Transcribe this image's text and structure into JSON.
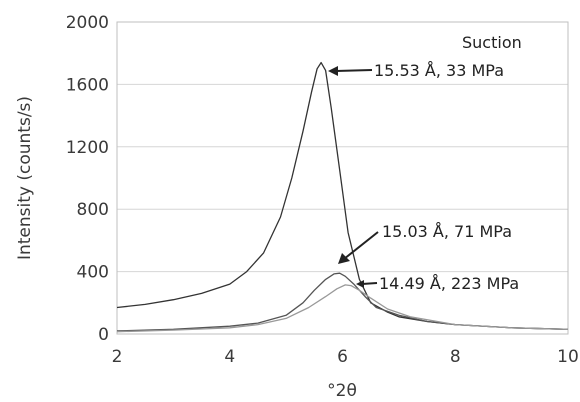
{
  "chart_data": {
    "type": "line",
    "xlabel": "°2θ",
    "ylabel": "Intensity (counts/s)",
    "xlim": [
      2,
      10
    ],
    "ylim": [
      0,
      2000
    ],
    "xticks": [
      2,
      4,
      6,
      8,
      10
    ],
    "yticks": [
      0,
      400,
      800,
      1200,
      1600,
      2000
    ],
    "grid": "horizontal",
    "legend_text": "Suction",
    "legend_position": "top-right",
    "series": [
      {
        "color": "#333333",
        "x": [
          2.0,
          2.5,
          3.0,
          3.5,
          4.0,
          4.3,
          4.6,
          4.9,
          5.1,
          5.3,
          5.45,
          5.55,
          5.62,
          5.7,
          5.8,
          5.95,
          6.1,
          6.3,
          6.5,
          6.8,
          7.0,
          7.5,
          8.0,
          9.0,
          10.0
        ],
        "y": [
          170,
          190,
          220,
          260,
          320,
          400,
          520,
          750,
          1000,
          1300,
          1550,
          1700,
          1740,
          1690,
          1450,
          1050,
          650,
          350,
          200,
          140,
          110,
          80,
          60,
          40,
          30
        ]
      },
      {
        "color": "#555555",
        "x": [
          2.0,
          3.0,
          4.0,
          4.5,
          5.0,
          5.3,
          5.5,
          5.7,
          5.85,
          5.95,
          6.05,
          6.2,
          6.4,
          6.6,
          7.0,
          7.5,
          8.0,
          9.0,
          10.0
        ],
        "y": [
          20,
          30,
          50,
          70,
          120,
          200,
          280,
          350,
          385,
          390,
          370,
          320,
          240,
          170,
          120,
          80,
          60,
          40,
          30
        ]
      },
      {
        "color": "#999999",
        "x": [
          2.0,
          3.0,
          4.0,
          4.5,
          5.0,
          5.4,
          5.7,
          5.9,
          6.05,
          6.15,
          6.3,
          6.5,
          6.8,
          7.2,
          8.0,
          9.0,
          10.0
        ],
        "y": [
          15,
          25,
          40,
          60,
          100,
          170,
          240,
          290,
          315,
          310,
          280,
          230,
          160,
          110,
          60,
          40,
          30
        ]
      }
    ],
    "annotations": [
      {
        "text": "15.53 Å, 33 MPa",
        "point": [
          5.62,
          1740
        ]
      },
      {
        "text": "15.03 Å, 71 MPa",
        "point": [
          5.9,
          390
        ]
      },
      {
        "text": "14.49 Å, 223 MPa",
        "point": [
          6.35,
          300
        ]
      }
    ]
  }
}
